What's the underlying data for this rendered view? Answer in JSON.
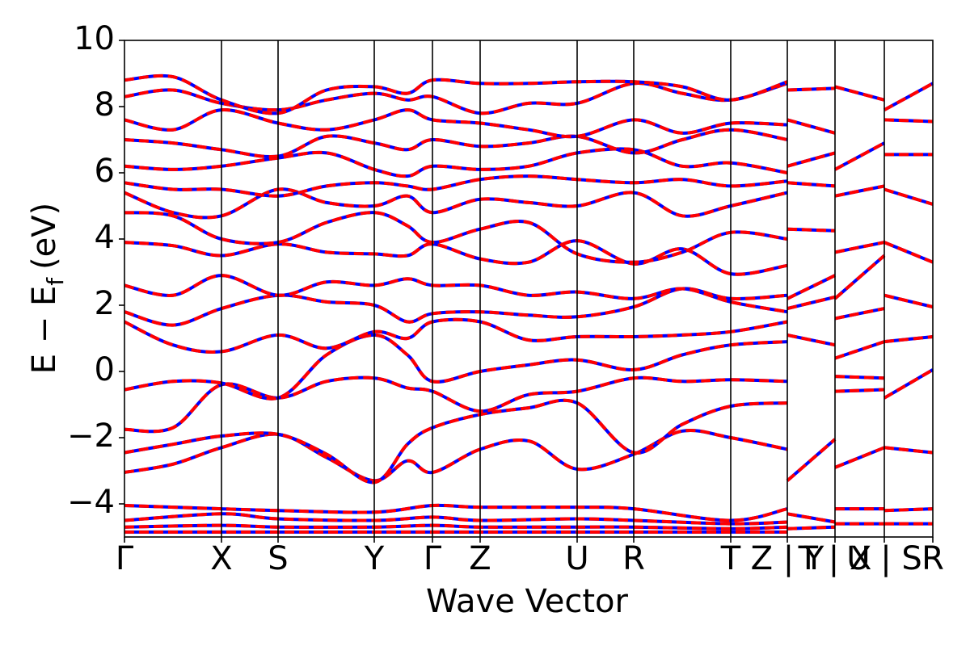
{
  "chart_data": {
    "type": "line",
    "title": "",
    "xlabel": "Wave Vector",
    "ylabel_main": "E − E",
    "ylabel_sub": "f",
    "ylabel_unit": "(eV)",
    "ylim": [
      -5,
      10
    ],
    "yticks": [
      -4,
      -2,
      0,
      2,
      4,
      6,
      8,
      10
    ],
    "ytick_labels": [
      "−4",
      "−2",
      "0",
      "2",
      "4",
      "6",
      "8",
      "10"
    ],
    "grid": false,
    "kpath": [
      {
        "x": 0.0,
        "label": "Γ"
      },
      {
        "x": 0.12,
        "label": "X"
      },
      {
        "x": 0.19,
        "label": "S"
      },
      {
        "x": 0.309,
        "label": "Y"
      },
      {
        "x": 0.381,
        "label": "Γ"
      },
      {
        "x": 0.44,
        "label": "Z"
      },
      {
        "x": 0.56,
        "label": "U"
      },
      {
        "x": 0.63,
        "label": "R"
      },
      {
        "x": 0.75,
        "label": "T"
      },
      {
        "x": 0.82,
        "label": "Z | Y"
      },
      {
        "x": 0.879,
        "label": "T | X"
      },
      {
        "x": 0.94,
        "label": "U | S"
      },
      {
        "x": 1.0,
        "label": "R"
      }
    ],
    "series_styles": [
      {
        "color": "#0000ff",
        "dash": "solid"
      },
      {
        "color": "#ff0000",
        "dash": "dashed"
      }
    ],
    "series": [
      {
        "x": [
          0,
          0.06,
          0.12,
          0.19,
          0.25,
          0.309,
          0.35,
          0.381,
          0.44,
          0.5,
          0.56,
          0.63,
          0.69,
          0.75,
          0.82
        ],
        "y": [
          -3.05,
          -2.8,
          -2.3,
          -1.9,
          -2.6,
          -3.3,
          -2.7,
          -3.05,
          -2.35,
          -2.1,
          -2.95,
          -2.5,
          -1.8,
          -2.0,
          -2.35
        ]
      },
      {
        "x": [
          0,
          0.06,
          0.12,
          0.19,
          0.25,
          0.309,
          0.35,
          0.381,
          0.44,
          0.5,
          0.56,
          0.63,
          0.69,
          0.75,
          0.82
        ],
        "y": [
          -2.45,
          -2.2,
          -1.95,
          -1.9,
          -2.5,
          -3.35,
          -2.2,
          -1.7,
          -1.3,
          -1.1,
          -0.95,
          -2.45,
          -1.6,
          -1.05,
          -0.95
        ]
      },
      {
        "x": [
          0,
          0.06,
          0.12,
          0.19,
          0.25,
          0.309,
          0.35,
          0.381,
          0.44,
          0.5,
          0.56,
          0.63,
          0.69,
          0.75,
          0.82
        ],
        "y": [
          -1.75,
          -1.7,
          -0.4,
          -0.8,
          -0.3,
          -0.2,
          -0.5,
          -0.6,
          -1.2,
          -0.7,
          -0.6,
          -0.2,
          -0.3,
          -0.25,
          -0.3
        ]
      },
      {
        "x": [
          0,
          0.06,
          0.12,
          0.19,
          0.25,
          0.309,
          0.35,
          0.381,
          0.44,
          0.5,
          0.56,
          0.63,
          0.69,
          0.75,
          0.82
        ],
        "y": [
          -0.55,
          -0.3,
          -0.35,
          -0.8,
          0.5,
          1.1,
          0.5,
          -0.3,
          0.0,
          0.2,
          0.35,
          0.05,
          0.5,
          0.8,
          0.9
        ]
      },
      {
        "x": [
          0,
          0.06,
          0.12,
          0.19,
          0.25,
          0.309,
          0.35,
          0.381,
          0.44,
          0.5,
          0.56,
          0.63,
          0.69,
          0.75,
          0.82
        ],
        "y": [
          1.5,
          0.8,
          0.6,
          1.1,
          0.7,
          1.2,
          1.0,
          1.5,
          1.5,
          0.95,
          1.05,
          1.05,
          1.1,
          1.2,
          1.5
        ]
      },
      {
        "x": [
          0,
          0.06,
          0.12,
          0.19,
          0.25,
          0.309,
          0.35,
          0.381,
          0.44,
          0.5,
          0.56,
          0.63,
          0.69,
          0.75,
          0.82
        ],
        "y": [
          1.8,
          1.4,
          1.9,
          2.3,
          2.1,
          2.0,
          1.5,
          1.75,
          1.8,
          1.7,
          1.65,
          1.95,
          2.5,
          2.2,
          2.3
        ]
      },
      {
        "x": [
          0,
          0.06,
          0.12,
          0.19,
          0.25,
          0.309,
          0.35,
          0.381,
          0.44,
          0.5,
          0.56,
          0.63,
          0.69,
          0.75,
          0.82
        ],
        "y": [
          2.6,
          2.3,
          2.9,
          2.3,
          2.7,
          2.6,
          2.8,
          2.6,
          2.6,
          2.3,
          2.4,
          2.2,
          2.5,
          2.1,
          1.8
        ]
      },
      {
        "x": [
          0,
          0.06,
          0.12,
          0.19,
          0.25,
          0.309,
          0.35,
          0.381,
          0.44,
          0.5,
          0.56,
          0.63,
          0.69,
          0.75,
          0.82
        ],
        "y": [
          3.9,
          3.8,
          3.5,
          3.85,
          3.6,
          3.55,
          3.5,
          3.85,
          3.4,
          3.3,
          3.95,
          3.25,
          3.7,
          2.95,
          3.2
        ]
      },
      {
        "x": [
          0,
          0.06,
          0.12,
          0.19,
          0.25,
          0.309,
          0.35,
          0.381,
          0.44,
          0.5,
          0.56,
          0.63,
          0.69,
          0.75,
          0.82
        ],
        "y": [
          4.8,
          4.7,
          4.0,
          3.9,
          4.5,
          4.8,
          4.4,
          3.9,
          4.3,
          4.5,
          3.55,
          3.3,
          3.6,
          4.2,
          4.0
        ]
      },
      {
        "x": [
          0,
          0.06,
          0.12,
          0.19,
          0.25,
          0.309,
          0.35,
          0.381,
          0.44,
          0.5,
          0.56,
          0.63,
          0.69,
          0.75,
          0.82
        ],
        "y": [
          5.4,
          4.8,
          4.7,
          5.5,
          5.1,
          5.0,
          5.3,
          4.8,
          5.2,
          5.1,
          5.0,
          5.4,
          4.7,
          5.0,
          5.4
        ]
      },
      {
        "x": [
          0,
          0.06,
          0.12,
          0.19,
          0.25,
          0.309,
          0.35,
          0.381,
          0.44,
          0.5,
          0.56,
          0.63,
          0.69,
          0.75,
          0.82
        ],
        "y": [
          5.7,
          5.5,
          5.5,
          5.3,
          5.6,
          5.7,
          5.6,
          5.5,
          5.8,
          5.9,
          5.8,
          5.7,
          5.8,
          5.6,
          5.75
        ]
      },
      {
        "x": [
          0,
          0.06,
          0.12,
          0.19,
          0.25,
          0.309,
          0.35,
          0.381,
          0.44,
          0.5,
          0.56,
          0.63,
          0.69,
          0.75,
          0.82
        ],
        "y": [
          6.2,
          6.1,
          6.2,
          6.45,
          6.6,
          6.1,
          5.9,
          6.2,
          6.1,
          6.2,
          6.6,
          6.7,
          6.2,
          6.3,
          6.0
        ]
      },
      {
        "x": [
          0,
          0.06,
          0.12,
          0.19,
          0.25,
          0.309,
          0.35,
          0.381,
          0.44,
          0.5,
          0.56,
          0.63,
          0.69,
          0.75,
          0.82
        ],
        "y": [
          7.0,
          6.9,
          6.7,
          6.5,
          7.1,
          6.9,
          6.7,
          7.0,
          6.8,
          6.9,
          7.1,
          6.6,
          7.0,
          7.3,
          7.0
        ]
      },
      {
        "x": [
          0,
          0.06,
          0.12,
          0.19,
          0.25,
          0.309,
          0.35,
          0.381,
          0.44,
          0.5,
          0.56,
          0.63,
          0.69,
          0.75,
          0.82
        ],
        "y": [
          7.6,
          7.3,
          7.9,
          7.5,
          7.3,
          7.6,
          7.9,
          7.6,
          7.5,
          7.3,
          7.1,
          7.6,
          7.2,
          7.5,
          7.45
        ]
      },
      {
        "x": [
          0,
          0.06,
          0.12,
          0.19,
          0.25,
          0.309,
          0.35,
          0.381,
          0.44,
          0.5,
          0.56,
          0.63,
          0.69,
          0.75,
          0.82
        ],
        "y": [
          8.3,
          8.5,
          8.1,
          7.9,
          8.2,
          8.4,
          8.2,
          8.3,
          7.8,
          8.1,
          8.1,
          8.7,
          8.4,
          8.2,
          8.7
        ]
      },
      {
        "x": [
          0,
          0.06,
          0.12,
          0.19,
          0.25,
          0.309,
          0.35,
          0.381,
          0.44,
          0.5,
          0.56,
          0.63,
          0.69,
          0.75,
          0.82
        ],
        "y": [
          8.8,
          8.9,
          8.2,
          7.8,
          8.5,
          8.6,
          8.4,
          8.8,
          8.7,
          8.7,
          8.75,
          8.75,
          8.6,
          8.2,
          8.75
        ]
      },
      {
        "x": [
          0,
          0.12,
          0.19,
          0.309,
          0.381,
          0.44,
          0.56,
          0.63,
          0.75,
          0.82
        ],
        "y": [
          -4.05,
          -4.15,
          -4.2,
          -4.25,
          -4.05,
          -4.1,
          -4.1,
          -4.15,
          -4.5,
          -4.15
        ]
      },
      {
        "x": [
          0,
          0.12,
          0.19,
          0.309,
          0.381,
          0.44,
          0.56,
          0.63,
          0.75,
          0.82
        ],
        "y": [
          -4.5,
          -4.3,
          -4.45,
          -4.5,
          -4.4,
          -4.5,
          -4.45,
          -4.5,
          -4.6,
          -4.55
        ]
      },
      {
        "x": [
          0,
          0.12,
          0.19,
          0.309,
          0.381,
          0.44,
          0.56,
          0.63,
          0.75,
          0.82
        ],
        "y": [
          -4.7,
          -4.65,
          -4.7,
          -4.7,
          -4.65,
          -4.7,
          -4.7,
          -4.7,
          -4.75,
          -4.7
        ]
      },
      {
        "x": [
          0,
          0.12,
          0.19,
          0.309,
          0.381,
          0.44,
          0.56,
          0.63,
          0.75,
          0.82
        ],
        "y": [
          -4.85,
          -4.85,
          -4.85,
          -4.85,
          -4.85,
          -4.85,
          -4.85,
          -4.85,
          -4.85,
          -4.85
        ]
      },
      {
        "x": [
          0.82,
          0.879
        ],
        "y": [
          -3.3,
          -2.05
        ]
      },
      {
        "x": [
          0.82,
          0.879
        ],
        "y": [
          1.1,
          0.8
        ]
      },
      {
        "x": [
          0.82,
          0.879
        ],
        "y": [
          1.9,
          2.25
        ]
      },
      {
        "x": [
          0.82,
          0.879
        ],
        "y": [
          2.2,
          2.9
        ]
      },
      {
        "x": [
          0.82,
          0.879
        ],
        "y": [
          4.3,
          4.25
        ]
      },
      {
        "x": [
          0.82,
          0.879
        ],
        "y": [
          5.7,
          5.6
        ]
      },
      {
        "x": [
          0.82,
          0.879
        ],
        "y": [
          6.2,
          6.6
        ]
      },
      {
        "x": [
          0.82,
          0.879
        ],
        "y": [
          7.6,
          7.2
        ]
      },
      {
        "x": [
          0.82,
          0.879
        ],
        "y": [
          8.5,
          8.55
        ]
      },
      {
        "x": [
          0.82,
          0.879
        ],
        "y": [
          -4.3,
          -4.55
        ]
      },
      {
        "x": [
          0.82,
          0.879
        ],
        "y": [
          -4.75,
          -4.7
        ]
      },
      {
        "x": [
          0.879,
          0.94
        ],
        "y": [
          -2.9,
          -2.3
        ]
      },
      {
        "x": [
          0.879,
          0.94
        ],
        "y": [
          -0.15,
          -0.2
        ]
      },
      {
        "x": [
          0.879,
          0.94
        ],
        "y": [
          -0.6,
          -0.55
        ]
      },
      {
        "x": [
          0.879,
          0.94
        ],
        "y": [
          0.4,
          0.9
        ]
      },
      {
        "x": [
          0.879,
          0.94
        ],
        "y": [
          1.6,
          1.9
        ]
      },
      {
        "x": [
          0.879,
          0.94
        ],
        "y": [
          2.2,
          3.5
        ]
      },
      {
        "x": [
          0.879,
          0.94
        ],
        "y": [
          3.6,
          3.9
        ]
      },
      {
        "x": [
          0.879,
          0.94
        ],
        "y": [
          5.3,
          5.6
        ]
      },
      {
        "x": [
          0.879,
          0.94
        ],
        "y": [
          6.1,
          6.9
        ]
      },
      {
        "x": [
          0.879,
          0.94
        ],
        "y": [
          8.6,
          8.2
        ]
      },
      {
        "x": [
          0.879,
          0.94
        ],
        "y": [
          -4.15,
          -4.15
        ]
      },
      {
        "x": [
          0.879,
          0.94
        ],
        "y": [
          -4.6,
          -4.6
        ]
      },
      {
        "x": [
          0.94,
          1.0
        ],
        "y": [
          -0.8,
          0.05
        ]
      },
      {
        "x": [
          0.94,
          1.0
        ],
        "y": [
          -2.3,
          -2.45
        ]
      },
      {
        "x": [
          0.94,
          1.0
        ],
        "y": [
          0.9,
          1.05
        ]
      },
      {
        "x": [
          0.94,
          1.0
        ],
        "y": [
          2.3,
          1.95
        ]
      },
      {
        "x": [
          0.94,
          1.0
        ],
        "y": [
          3.9,
          3.3
        ]
      },
      {
        "x": [
          0.94,
          1.0
        ],
        "y": [
          5.5,
          5.05
        ]
      },
      {
        "x": [
          0.94,
          1.0
        ],
        "y": [
          6.55,
          6.55
        ]
      },
      {
        "x": [
          0.94,
          1.0
        ],
        "y": [
          7.6,
          7.55
        ]
      },
      {
        "x": [
          0.94,
          1.0
        ],
        "y": [
          7.9,
          8.7
        ]
      },
      {
        "x": [
          0.94,
          1.0
        ],
        "y": [
          -4.2,
          -4.15
        ]
      },
      {
        "x": [
          0.94,
          1.0
        ],
        "y": [
          -4.6,
          -4.6
        ]
      }
    ]
  }
}
